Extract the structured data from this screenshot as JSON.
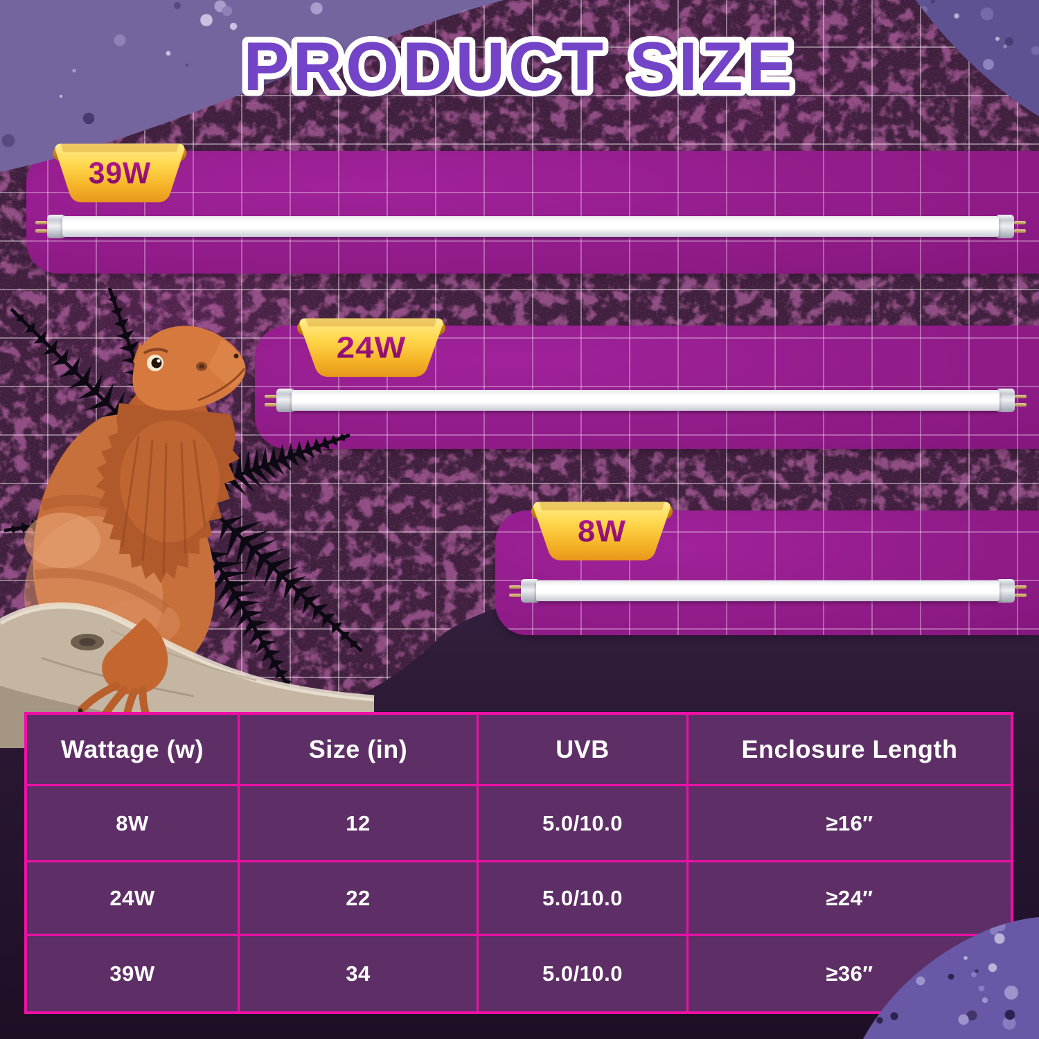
{
  "title": "PRODUCT SIZE",
  "badges": [
    {
      "wattage": "39W"
    },
    {
      "wattage": "24W"
    },
    {
      "wattage": "8W"
    }
  ],
  "table": {
    "headers": [
      "Wattage (w)",
      "Size (in)",
      "UVB",
      "Enclosure Length"
    ],
    "rows": [
      [
        "8W",
        "12",
        "5.0/10.0",
        "≥16″"
      ],
      [
        "24W",
        "22",
        "5.0/10.0",
        "≥24″"
      ],
      [
        "39W",
        "34",
        "5.0/10.0",
        "≥36″"
      ]
    ]
  },
  "colors": {
    "title_fill": "#7444c8",
    "panel_magenta": "#8d1a85",
    "badge_gold": "#f6b62a",
    "badge_text_magenta": "#9c1180",
    "table_border_pink": "#ee10a6",
    "table_cell_purple": "#5e2f66",
    "background_plum": "#40203e",
    "tube_white": "#ffffff"
  }
}
